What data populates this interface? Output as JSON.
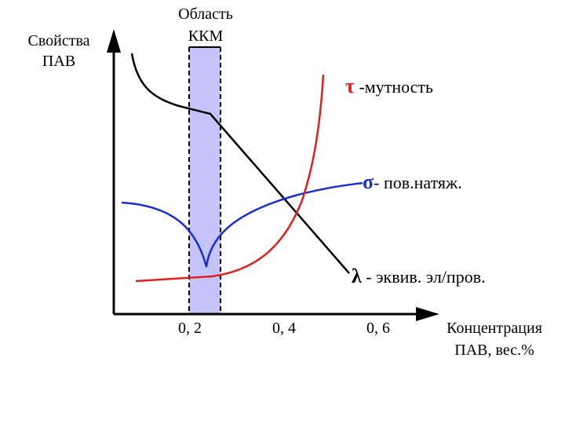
{
  "y_axis_label": [
    "Свойства",
    "ПАВ"
  ],
  "region_label": [
    "Область",
    "ККМ"
  ],
  "legend": [
    {
      "symbol": "τ",
      "text": " -мутность"
    },
    {
      "symbol": "σ",
      "text": "- пов.натяж."
    },
    {
      "symbol": "λ",
      "text": " - эквив. эл/пров."
    }
  ],
  "x_ticks": [
    "0, 2",
    "0, 4",
    "0, 6"
  ],
  "x_axis_label": [
    "Концентрация",
    "ПАВ, вес.%"
  ]
}
